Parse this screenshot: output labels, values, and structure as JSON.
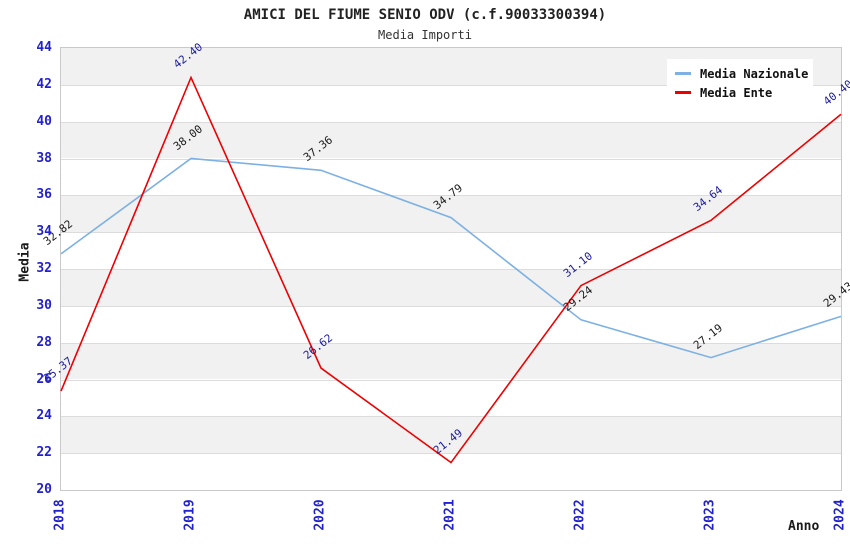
{
  "chart_data": {
    "type": "line",
    "title": "AMICI DEL FIUME SENIO ODV (c.f.90033300394)",
    "subtitle": "Media Importi",
    "xlabel": "Anno",
    "ylabel": "Media",
    "categories": [
      "2018",
      "2019",
      "2020",
      "2021",
      "2022",
      "2023",
      "2024"
    ],
    "series": [
      {
        "name": "Media Nazionale",
        "color": "#7db1e3",
        "label_color": "#1a1a1a",
        "values": [
          32.82,
          38.0,
          37.36,
          34.79,
          29.24,
          27.19,
          29.43
        ]
      },
      {
        "name": "Media Ente",
        "color": "#ee0000",
        "label_color": "#1c1c9c",
        "values": [
          25.37,
          42.4,
          26.62,
          21.49,
          31.1,
          34.64,
          40.4
        ]
      }
    ],
    "ylim": [
      20,
      44
    ],
    "ytick_step": 2,
    "value_label_decimals": 2,
    "grid": "horizontal-bands-alternating",
    "band_color": "#f1f1f1",
    "tick_label_color": "#2222cc",
    "legend_position": "top-right"
  }
}
